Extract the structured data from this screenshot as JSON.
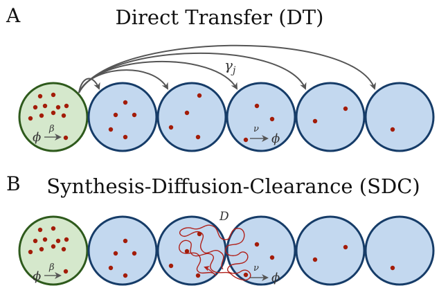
{
  "panels": [
    {
      "id": "A",
      "letter": "A",
      "title": "Direct Transfer (DT)",
      "transfer_rate": "γ",
      "transfer_rate_sub": "j",
      "synthesis": {
        "from": "ϕ",
        "rate": "β"
      },
      "clearance": {
        "rate": "ν",
        "to": "ϕ"
      }
    },
    {
      "id": "B",
      "letter": "B",
      "title": "Synthesis-Diffusion-Clearance (SDC)",
      "diffusion": "D",
      "synthesis": {
        "from": "ϕ",
        "rate": "β"
      },
      "clearance": {
        "rate": "ν",
        "to": "ϕ"
      }
    }
  ],
  "colors": {
    "source_fill": "#d5e8cc",
    "source_stroke": "#2e5a1c",
    "target_fill": "#c3d8ef",
    "target_stroke": "#163c68",
    "particle": "#a31c08",
    "arrow": "#555555",
    "diffusion_path": "#b0201a"
  }
}
